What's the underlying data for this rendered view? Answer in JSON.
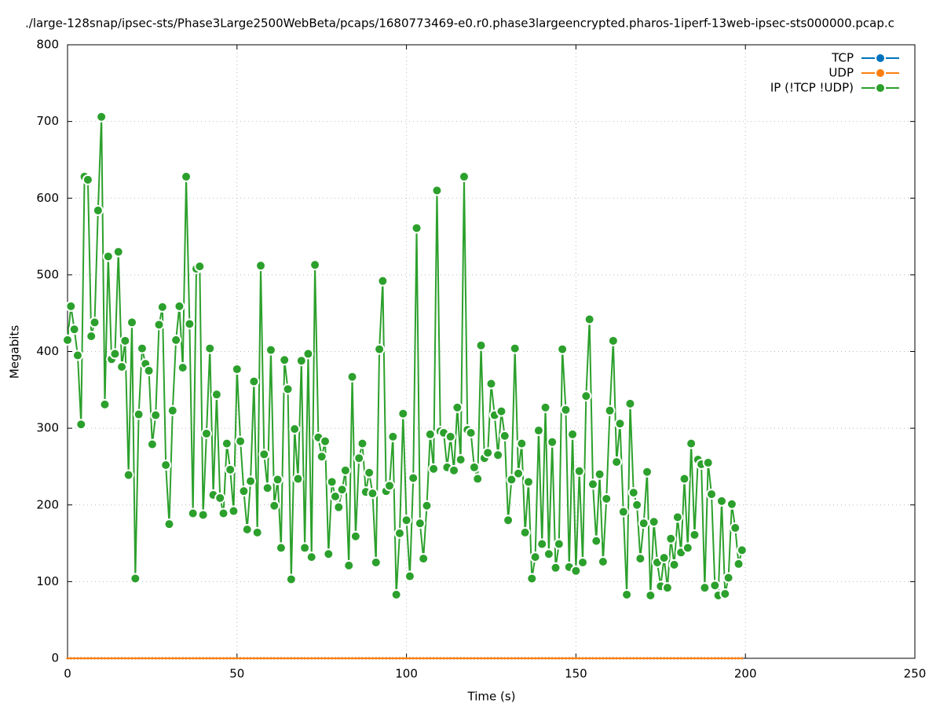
{
  "chart_data": {
    "type": "line",
    "title": "./large-128snap/ipsec-sts/Phase3Large2500WebBeta/pcaps/1680773469-e0.r0.phase3largeencrypted.pharos-1iperf-13web-ipsec-sts000000.pcap.c",
    "xlabel": "Time (s)",
    "ylabel": "Megabits",
    "xlim": [
      0,
      250
    ],
    "ylim": [
      0,
      800
    ],
    "xticks": [
      0,
      50,
      100,
      150,
      200,
      250
    ],
    "yticks": [
      0,
      100,
      200,
      300,
      400,
      500,
      600,
      700,
      800
    ],
    "grid": true,
    "legend": "top-right",
    "x": [
      0,
      1,
      2,
      3,
      4,
      5,
      6,
      7,
      8,
      9,
      10,
      11,
      12,
      13,
      14,
      15,
      16,
      17,
      18,
      19,
      20,
      21,
      22,
      23,
      24,
      25,
      26,
      27,
      28,
      29,
      30,
      31,
      32,
      33,
      34,
      35,
      36,
      37,
      38,
      39,
      40,
      41,
      42,
      43,
      44,
      45,
      46,
      47,
      48,
      49,
      50,
      51,
      52,
      53,
      54,
      55,
      56,
      57,
      58,
      59,
      60,
      61,
      62,
      63,
      64,
      65,
      66,
      67,
      68,
      69,
      70,
      71,
      72,
      73,
      74,
      75,
      76,
      77,
      78,
      79,
      80,
      81,
      82,
      83,
      84,
      85,
      86,
      87,
      88,
      89,
      90,
      91,
      92,
      93,
      94,
      95,
      96,
      97,
      98,
      99,
      100,
      101,
      102,
      103,
      104,
      105,
      106,
      107,
      108,
      109,
      110,
      111,
      112,
      113,
      114,
      115,
      116,
      117,
      118,
      119,
      120,
      121,
      122,
      123,
      124,
      125,
      126,
      127,
      128,
      129,
      130,
      131,
      132,
      133,
      134,
      135,
      136,
      137,
      138,
      139,
      140,
      141,
      142,
      143,
      144,
      145,
      146,
      147,
      148,
      149,
      150,
      151,
      152,
      153,
      154,
      155,
      156,
      157,
      158,
      159,
      160,
      161,
      162,
      163,
      164,
      165,
      166,
      167,
      168,
      169,
      170,
      171,
      172,
      173,
      174,
      175,
      176,
      177,
      178,
      179,
      180,
      181,
      182,
      183,
      184,
      185,
      186,
      187,
      188,
      189,
      190,
      191,
      192,
      193,
      194,
      195,
      196,
      197,
      198,
      199
    ],
    "series": [
      {
        "name": "TCP",
        "color": "#0072bd",
        "values": [
          0,
          0,
          0,
          0,
          0,
          0,
          0,
          0,
          0,
          0,
          0,
          0,
          0,
          0,
          0,
          0,
          0,
          0,
          0,
          0,
          0,
          0,
          0,
          0,
          0,
          0,
          0,
          0,
          0,
          0,
          0,
          0,
          0,
          0,
          0,
          0,
          0,
          0,
          0,
          0,
          0,
          0,
          0,
          0,
          0,
          0,
          0,
          0,
          0,
          0,
          0,
          0,
          0,
          0,
          0,
          0,
          0,
          0,
          0,
          0,
          0,
          0,
          0,
          0,
          0,
          0,
          0,
          0,
          0,
          0,
          0,
          0,
          0,
          0,
          0,
          0,
          0,
          0,
          0,
          0,
          0,
          0,
          0,
          0,
          0,
          0,
          0,
          0,
          0,
          0,
          0,
          0,
          0,
          0,
          0,
          0,
          0,
          0,
          0,
          0,
          0,
          0,
          0,
          0,
          0,
          0,
          0,
          0,
          0,
          0,
          0,
          0,
          0,
          0,
          0,
          0,
          0,
          0,
          0,
          0,
          0,
          0,
          0,
          0,
          0,
          0,
          0,
          0,
          0,
          0,
          0,
          0,
          0,
          0,
          0,
          0,
          0,
          0,
          0,
          0,
          0,
          0,
          0,
          0,
          0,
          0,
          0,
          0,
          0,
          0,
          0,
          0,
          0,
          0,
          0,
          0,
          0,
          0,
          0,
          0,
          0,
          0,
          0,
          0,
          0,
          0,
          0,
          0,
          0,
          0,
          0,
          0,
          0,
          0,
          0,
          0,
          0,
          0,
          0,
          0,
          0,
          0,
          0,
          0,
          0,
          0,
          0,
          0,
          0,
          0,
          0,
          0,
          0,
          0,
          0,
          0,
          0,
          0,
          0,
          0
        ]
      },
      {
        "name": "UDP",
        "color": "#ff7f0e",
        "values": [
          0,
          0,
          0,
          0,
          0,
          0,
          0,
          0,
          0,
          0,
          0,
          0,
          0,
          0,
          0,
          0,
          0,
          0,
          0,
          0,
          0,
          0,
          0,
          0,
          0,
          0,
          0,
          0,
          0,
          0,
          0,
          0,
          0,
          0,
          0,
          0,
          0,
          0,
          0,
          0,
          0,
          0,
          0,
          0,
          0,
          0,
          0,
          0,
          0,
          0,
          0,
          0,
          0,
          0,
          0,
          0,
          0,
          0,
          0,
          0,
          0,
          0,
          0,
          0,
          0,
          0,
          0,
          0,
          0,
          0,
          0,
          0,
          0,
          0,
          0,
          0,
          0,
          0,
          0,
          0,
          0,
          0,
          0,
          0,
          0,
          0,
          0,
          0,
          0,
          0,
          0,
          0,
          0,
          0,
          0,
          0,
          0,
          0,
          0,
          0,
          0,
          0,
          0,
          0,
          0,
          0,
          0,
          0,
          0,
          0,
          0,
          0,
          0,
          0,
          0,
          0,
          0,
          0,
          0,
          0,
          0,
          0,
          0,
          0,
          0,
          0,
          0,
          0,
          0,
          0,
          0,
          0,
          0,
          0,
          0,
          0,
          0,
          0,
          0,
          0,
          0,
          0,
          0,
          0,
          0,
          0,
          0,
          0,
          0,
          0,
          0,
          0,
          0,
          0,
          0,
          0,
          0,
          0,
          0,
          0,
          0,
          0,
          0,
          0,
          0,
          0,
          0,
          0,
          0,
          0,
          0,
          0,
          0,
          0,
          0,
          0,
          0,
          0,
          0,
          0,
          0,
          0,
          0,
          0,
          0,
          0,
          0,
          0,
          0,
          0,
          0,
          0,
          0,
          0,
          0,
          0,
          0,
          0,
          0,
          0
        ]
      },
      {
        "name": "IP (!TCP  !UDP)",
        "color": "#2ca02c",
        "values": [
          415,
          459,
          429,
          395,
          305,
          628,
          624,
          420,
          438,
          584,
          706,
          331,
          524,
          390,
          397,
          530,
          380,
          414,
          239,
          438,
          104,
          318,
          404,
          384,
          375,
          279,
          317,
          435,
          458,
          252,
          175,
          323,
          415,
          459,
          379,
          628,
          436,
          189,
          508,
          511,
          187,
          293,
          404,
          213,
          344,
          209,
          189,
          280,
          246,
          192,
          377,
          283,
          218,
          168,
          231,
          361,
          164,
          512,
          266,
          222,
          402,
          199,
          233,
          144,
          389,
          351,
          103,
          299,
          234,
          388,
          144,
          397,
          132,
          513,
          288,
          263,
          283,
          136,
          230,
          211,
          197,
          220,
          245,
          121,
          367,
          159,
          261,
          280,
          217,
          242,
          215,
          125,
          403,
          492,
          218,
          225,
          289,
          83,
          163,
          319,
          180,
          107,
          235,
          561,
          176,
          130,
          199,
          292,
          247,
          610,
          296,
          294,
          249,
          289,
          245,
          327,
          259,
          628,
          298,
          294,
          249,
          234,
          408,
          261,
          268,
          358,
          317,
          265,
          322,
          290,
          180,
          233,
          404,
          241,
          280,
          164,
          230,
          104,
          132,
          297,
          149,
          327,
          136,
          282,
          118,
          149,
          403,
          324,
          119,
          292,
          114,
          244,
          125,
          342,
          442,
          227,
          153,
          240,
          126,
          208,
          323,
          414,
          256,
          306,
          191,
          83,
          332,
          216,
          200,
          130,
          176,
          243,
          82,
          178,
          125,
          94,
          131,
          92,
          156,
          122,
          184,
          138,
          234,
          144,
          280,
          161,
          259,
          253,
          92,
          255,
          214,
          95,
          82,
          205,
          84,
          105,
          201,
          170,
          123,
          141
        ]
      }
    ]
  }
}
